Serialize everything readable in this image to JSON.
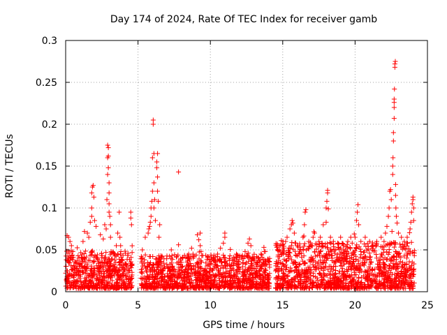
{
  "chart_data": {
    "type": "scatter",
    "title": "Day 174 of 2024, Rate Of TEC Index for receiver gamb",
    "xlabel": "GPS time / hours",
    "ylabel": "ROTI / TECUs",
    "xlim": [
      0,
      25
    ],
    "ylim": [
      0,
      0.3
    ],
    "xticks": [
      0,
      5,
      10,
      15,
      20,
      25
    ],
    "xtick_labels": [
      "0",
      "5",
      "10",
      "15",
      "20",
      "25"
    ],
    "yticks": [
      0,
      0.05,
      0.1,
      0.15,
      0.2,
      0.25,
      0.3
    ],
    "ytick_labels": [
      "0",
      "0.05",
      "0.1",
      "0.15",
      "0.2",
      "0.25",
      "0.3"
    ],
    "grid": true,
    "marker": "+",
    "color": "#ff0000",
    "dense_segments": [
      {
        "x_start": 0.0,
        "x_end": 4.6,
        "typical_max": 0.045
      },
      {
        "x_start": 5.2,
        "x_end": 14.1,
        "typical_max": 0.04
      },
      {
        "x_start": 14.5,
        "x_end": 24.1,
        "typical_max": 0.055
      }
    ],
    "series": [
      {
        "name": "ROTI",
        "points": [
          [
            0.1,
            0.067
          ],
          [
            0.2,
            0.065
          ],
          [
            0.3,
            0.06
          ],
          [
            0.4,
            0.055
          ],
          [
            0.5,
            0.048
          ],
          [
            1.2,
            0.06
          ],
          [
            1.3,
            0.072
          ],
          [
            1.5,
            0.07
          ],
          [
            1.6,
            0.065
          ],
          [
            1.7,
            0.083
          ],
          [
            1.8,
            0.09
          ],
          [
            1.8,
            0.1
          ],
          [
            1.8,
            0.118
          ],
          [
            1.85,
            0.125
          ],
          [
            1.9,
            0.127
          ],
          [
            1.95,
            0.113
          ],
          [
            2.0,
            0.085
          ],
          [
            2.1,
            0.078
          ],
          [
            2.4,
            0.068
          ],
          [
            2.6,
            0.063
          ],
          [
            2.7,
            0.08
          ],
          [
            2.8,
            0.075
          ],
          [
            2.85,
            0.11
          ],
          [
            2.9,
            0.14
          ],
          [
            2.9,
            0.16
          ],
          [
            2.9,
            0.175
          ],
          [
            2.95,
            0.172
          ],
          [
            2.95,
            0.162
          ],
          [
            2.95,
            0.148
          ],
          [
            3.0,
            0.13
          ],
          [
            3.0,
            0.118
          ],
          [
            3.0,
            0.105
          ],
          [
            3.0,
            0.095
          ],
          [
            3.05,
            0.09
          ],
          [
            3.1,
            0.08
          ],
          [
            3.1,
            0.065
          ],
          [
            3.5,
            0.055
          ],
          [
            3.6,
            0.07
          ],
          [
            3.7,
            0.095
          ],
          [
            3.75,
            0.065
          ],
          [
            3.8,
            0.055
          ],
          [
            4.5,
            0.095
          ],
          [
            4.5,
            0.088
          ],
          [
            4.55,
            0.08
          ],
          [
            5.3,
            0.05
          ],
          [
            5.5,
            0.065
          ],
          [
            5.7,
            0.07
          ],
          [
            5.75,
            0.075
          ],
          [
            5.8,
            0.078
          ],
          [
            5.85,
            0.083
          ],
          [
            5.9,
            0.09
          ],
          [
            5.9,
            0.1
          ],
          [
            5.95,
            0.108
          ],
          [
            6.0,
            0.12
          ],
          [
            6.0,
            0.16
          ],
          [
            6.05,
            0.2
          ],
          [
            6.05,
            0.205
          ],
          [
            6.1,
            0.165
          ],
          [
            6.1,
            0.13
          ],
          [
            6.1,
            0.1
          ],
          [
            6.15,
            0.11
          ],
          [
            6.2,
            0.085
          ],
          [
            6.3,
            0.155
          ],
          [
            6.3,
            0.148
          ],
          [
            6.35,
            0.165
          ],
          [
            6.35,
            0.137
          ],
          [
            6.35,
            0.12
          ],
          [
            6.4,
            0.108
          ],
          [
            6.45,
            0.065
          ],
          [
            6.5,
            0.08
          ],
          [
            7.3,
            0.05
          ],
          [
            7.8,
            0.143
          ],
          [
            7.8,
            0.056
          ],
          [
            8.1,
            0.04
          ],
          [
            8.5,
            0.045
          ],
          [
            8.7,
            0.052
          ],
          [
            8.8,
            0.045
          ],
          [
            9.1,
            0.068
          ],
          [
            9.2,
            0.062
          ],
          [
            9.3,
            0.055
          ],
          [
            9.3,
            0.07
          ],
          [
            10.2,
            0.04
          ],
          [
            10.5,
            0.045
          ],
          [
            10.7,
            0.052
          ],
          [
            10.9,
            0.058
          ],
          [
            11.0,
            0.065
          ],
          [
            11.0,
            0.07
          ],
          [
            11.6,
            0.035
          ],
          [
            11.8,
            0.045
          ],
          [
            12.2,
            0.04
          ],
          [
            12.4,
            0.048
          ],
          [
            12.6,
            0.058
          ],
          [
            12.7,
            0.063
          ],
          [
            12.8,
            0.055
          ],
          [
            13.2,
            0.042
          ],
          [
            13.5,
            0.045
          ],
          [
            13.7,
            0.053
          ],
          [
            13.8,
            0.048
          ],
          [
            15.0,
            0.05
          ],
          [
            15.2,
            0.06
          ],
          [
            15.3,
            0.065
          ],
          [
            15.5,
            0.075
          ],
          [
            15.6,
            0.08
          ],
          [
            15.65,
            0.085
          ],
          [
            15.7,
            0.082
          ],
          [
            15.8,
            0.07
          ],
          [
            16.0,
            0.055
          ],
          [
            16.4,
            0.065
          ],
          [
            16.5,
            0.08
          ],
          [
            16.55,
            0.095
          ],
          [
            16.6,
            0.098
          ],
          [
            16.8,
            0.06
          ],
          [
            17.0,
            0.055
          ],
          [
            17.1,
            0.065
          ],
          [
            17.2,
            0.07
          ],
          [
            17.5,
            0.06
          ],
          [
            17.6,
            0.065
          ],
          [
            17.7,
            0.058
          ],
          [
            17.8,
            0.08
          ],
          [
            18.0,
            0.083
          ],
          [
            18.0,
            0.1
          ],
          [
            18.05,
            0.108
          ],
          [
            18.1,
            0.118
          ],
          [
            18.1,
            0.121
          ],
          [
            18.15,
            0.099
          ],
          [
            18.3,
            0.065
          ],
          [
            18.5,
            0.06
          ],
          [
            18.8,
            0.058
          ],
          [
            19.0,
            0.065
          ],
          [
            19.2,
            0.055
          ],
          [
            19.5,
            0.06
          ],
          [
            19.7,
            0.065
          ],
          [
            19.8,
            0.058
          ],
          [
            20.0,
            0.065
          ],
          [
            20.1,
            0.085
          ],
          [
            20.15,
            0.095
          ],
          [
            20.2,
            0.104
          ],
          [
            20.25,
            0.08
          ],
          [
            20.4,
            0.06
          ],
          [
            20.7,
            0.065
          ],
          [
            21.0,
            0.06
          ],
          [
            21.2,
            0.055
          ],
          [
            21.5,
            0.06
          ],
          [
            21.8,
            0.065
          ],
          [
            22.0,
            0.06
          ],
          [
            22.1,
            0.07
          ],
          [
            22.2,
            0.078
          ],
          [
            22.3,
            0.09
          ],
          [
            22.35,
            0.1
          ],
          [
            22.4,
            0.12
          ],
          [
            22.45,
            0.122
          ],
          [
            22.5,
            0.11
          ],
          [
            22.55,
            0.072
          ],
          [
            22.6,
            0.14
          ],
          [
            22.6,
            0.15
          ],
          [
            22.62,
            0.16
          ],
          [
            22.65,
            0.18
          ],
          [
            22.65,
            0.19
          ],
          [
            22.7,
            0.207
          ],
          [
            22.7,
            0.22
          ],
          [
            22.7,
            0.226
          ],
          [
            22.7,
            0.23
          ],
          [
            22.72,
            0.242
          ],
          [
            22.75,
            0.268
          ],
          [
            22.75,
            0.272
          ],
          [
            22.78,
            0.275
          ],
          [
            22.8,
            0.128
          ],
          [
            22.8,
            0.115
          ],
          [
            22.82,
            0.1
          ],
          [
            22.85,
            0.09
          ],
          [
            22.9,
            0.082
          ],
          [
            23.0,
            0.07
          ],
          [
            23.2,
            0.065
          ],
          [
            23.4,
            0.06
          ],
          [
            23.6,
            0.065
          ],
          [
            23.8,
            0.075
          ],
          [
            23.85,
            0.083
          ],
          [
            23.9,
            0.095
          ],
          [
            23.95,
            0.105
          ],
          [
            24.0,
            0.11
          ],
          [
            24.0,
            0.113
          ],
          [
            24.05,
            0.1
          ],
          [
            24.05,
            0.085
          ]
        ]
      }
    ]
  }
}
